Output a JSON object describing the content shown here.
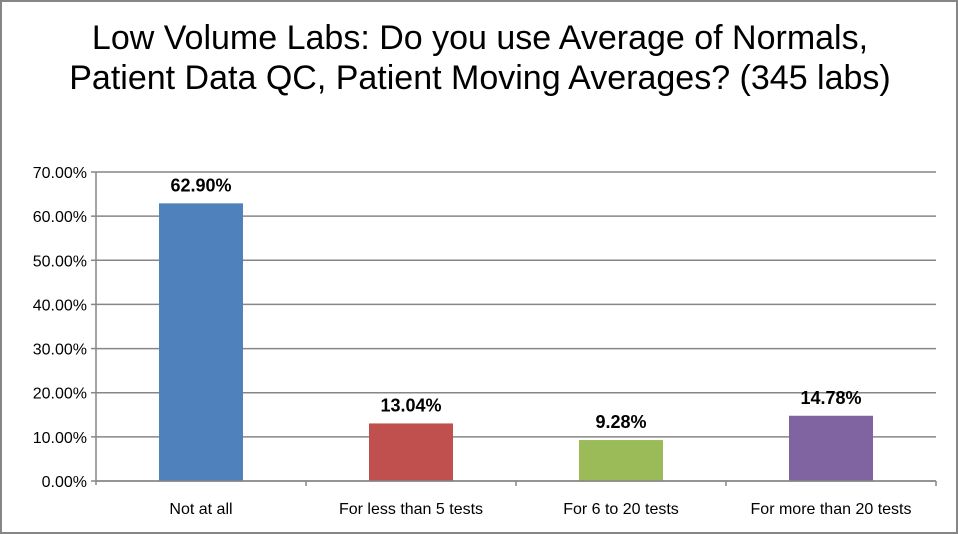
{
  "chart_data": {
    "type": "bar",
    "title": "Low Volume Labs: Do you use Average of Normals, Patient Data QC, Patient Moving Averages? (345 labs)",
    "categories": [
      "Not at all",
      "For less than 5 tests",
      "For 6 to 20 tests",
      "For more than 20 tests"
    ],
    "values": [
      62.9,
      13.04,
      9.28,
      14.78
    ],
    "data_labels": [
      "62.90%",
      "13.04%",
      "9.28%",
      "14.78%"
    ],
    "colors": [
      "#4F81BD",
      "#C0504D",
      "#9BBB59",
      "#8064A2"
    ],
    "ylim": [
      0,
      70
    ],
    "yticks": [
      "0.00%",
      "10.00%",
      "20.00%",
      "30.00%",
      "40.00%",
      "50.00%",
      "60.00%",
      "70.00%"
    ],
    "grid": true,
    "legend": "none",
    "xlabel": "",
    "ylabel": ""
  }
}
